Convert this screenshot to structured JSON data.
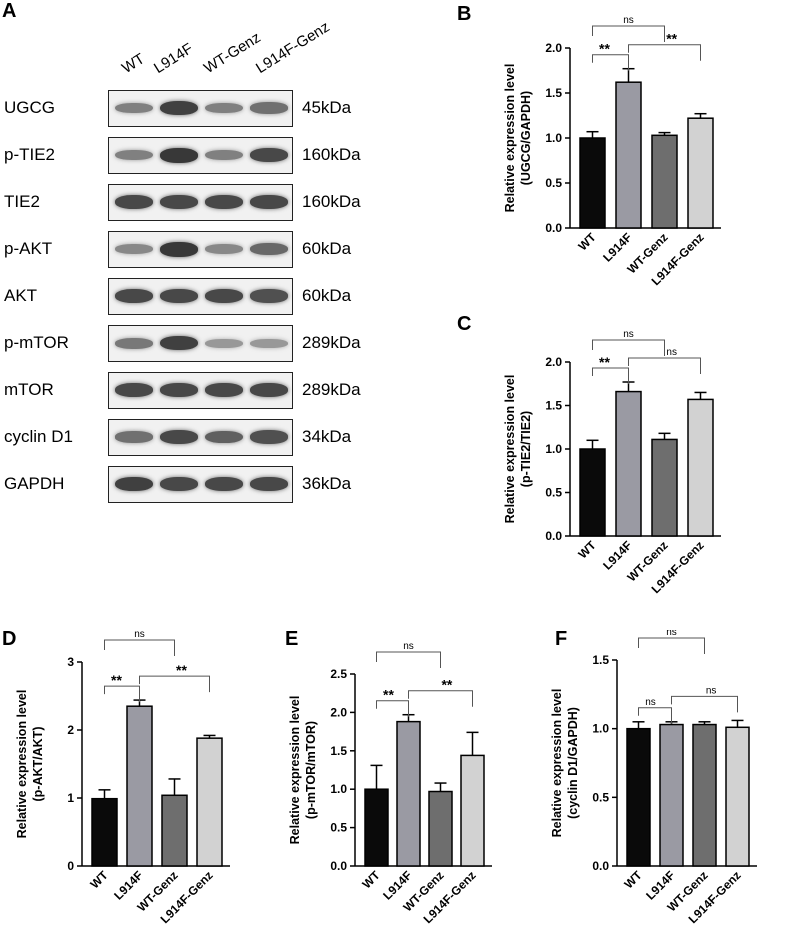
{
  "panel_labels": {
    "A": "A",
    "B": "B",
    "C": "C",
    "D": "D",
    "E": "E",
    "F": "F"
  },
  "blot": {
    "lanes": [
      "WT",
      "L914F",
      "WT-Genz",
      "L914F-Genz"
    ],
    "rows": [
      {
        "protein": "UGCG",
        "size": "45kDa",
        "intensity": [
          0.45,
          0.85,
          0.45,
          0.55
        ]
      },
      {
        "protein": "p-TIE2",
        "size": "160kDa",
        "intensity": [
          0.45,
          0.9,
          0.45,
          0.8
        ]
      },
      {
        "protein": "TIE2",
        "size": "160kDa",
        "intensity": [
          0.8,
          0.8,
          0.8,
          0.8
        ]
      },
      {
        "protein": "p-AKT",
        "size": "60kDa",
        "intensity": [
          0.4,
          0.9,
          0.4,
          0.6
        ]
      },
      {
        "protein": "AKT",
        "size": "60kDa",
        "intensity": [
          0.8,
          0.8,
          0.8,
          0.75
        ]
      },
      {
        "protein": "p-mTOR",
        "size": "289kDa",
        "intensity": [
          0.5,
          0.85,
          0.3,
          0.3
        ]
      },
      {
        "protein": "mTOR",
        "size": "289kDa",
        "intensity": [
          0.8,
          0.8,
          0.8,
          0.8
        ]
      },
      {
        "protein": "cyclin D1",
        "size": "34kDa",
        "intensity": [
          0.55,
          0.8,
          0.65,
          0.75
        ]
      },
      {
        "protein": "GAPDH",
        "size": "36kDa",
        "intensity": [
          0.85,
          0.8,
          0.8,
          0.8
        ]
      }
    ]
  },
  "bar_colors": [
    "#0a0a0a",
    "#9a9aa3",
    "#6e6e6e",
    "#d2d2d2"
  ],
  "chart_data": [
    {
      "id": "B",
      "type": "bar",
      "categories": [
        "WT",
        "L914F",
        "WT-Genz",
        "L914F-Genz"
      ],
      "values": [
        1.0,
        1.62,
        1.03,
        1.22
      ],
      "errors": [
        0.07,
        0.15,
        0.03,
        0.05
      ],
      "ylabel_line1": "Relative expression level",
      "ylabel_line2": "(UGCG/GAPDH)",
      "ylim": [
        0,
        2.0
      ],
      "yticks": [
        "0.0",
        "0.5",
        "1.0",
        "1.5",
        "2.0"
      ],
      "brackets": [
        {
          "from": 0,
          "to": 2,
          "label": "ns"
        },
        {
          "from": 0,
          "to": 1,
          "label": "**"
        },
        {
          "from": 1,
          "to": 3,
          "label": "**"
        }
      ]
    },
    {
      "id": "C",
      "type": "bar",
      "categories": [
        "WT",
        "L914F",
        "WT-Genz",
        "L914F-Genz"
      ],
      "values": [
        1.0,
        1.66,
        1.11,
        1.57
      ],
      "errors": [
        0.1,
        0.11,
        0.07,
        0.08
      ],
      "ylabel_line1": "Relative expression level",
      "ylabel_line2": "(p-TIE2/TIE2)",
      "ylim": [
        0,
        2.0
      ],
      "yticks": [
        "0.0",
        "0.5",
        "1.0",
        "1.5",
        "2.0"
      ],
      "brackets": [
        {
          "from": 0,
          "to": 2,
          "label": "ns"
        },
        {
          "from": 0,
          "to": 1,
          "label": "**"
        },
        {
          "from": 1,
          "to": 3,
          "label": "ns"
        }
      ]
    },
    {
      "id": "D",
      "type": "bar",
      "categories": [
        "WT",
        "L914F",
        "WT-Genz",
        "L914F-Genz"
      ],
      "values": [
        0.99,
        2.35,
        1.04,
        1.88
      ],
      "errors": [
        0.13,
        0.09,
        0.24,
        0.04
      ],
      "ylabel_line1": "Relative expression level",
      "ylabel_line2": "(p-AKT/AKT)",
      "ylim": [
        0,
        3
      ],
      "yticks": [
        "0",
        "1",
        "2",
        "3"
      ],
      "brackets": [
        {
          "from": 0,
          "to": 2,
          "label": "ns"
        },
        {
          "from": 0,
          "to": 1,
          "label": "**"
        },
        {
          "from": 1,
          "to": 3,
          "label": "**"
        }
      ]
    },
    {
      "id": "E",
      "type": "bar",
      "categories": [
        "WT",
        "L914F",
        "WT-Genz",
        "L914F-Genz"
      ],
      "values": [
        1.0,
        1.88,
        0.97,
        1.44
      ],
      "errors": [
        0.31,
        0.09,
        0.11,
        0.3
      ],
      "ylabel_line1": "Relative expression level",
      "ylabel_line2": "(p-mTOR/mTOR)",
      "ylim": [
        0,
        2.5
      ],
      "yticks": [
        "0.0",
        "0.5",
        "1.0",
        "1.5",
        "2.0",
        "2.5"
      ],
      "brackets": [
        {
          "from": 0,
          "to": 2,
          "label": "ns"
        },
        {
          "from": 0,
          "to": 1,
          "label": "**"
        },
        {
          "from": 1,
          "to": 3,
          "label": "**"
        }
      ]
    },
    {
      "id": "F",
      "type": "bar",
      "categories": [
        "WT",
        "L914F",
        "WT-Genz",
        "L914F-Genz"
      ],
      "values": [
        1.0,
        1.03,
        1.03,
        1.01
      ],
      "errors": [
        0.05,
        0.02,
        0.02,
        0.05
      ],
      "ylabel_line1": "Relative expression level",
      "ylabel_line2": "(cyclin D1/GAPDH)",
      "ylim": [
        0,
        1.5
      ],
      "yticks": [
        "0.0",
        "0.5",
        "1.0",
        "1.5"
      ],
      "brackets": [
        {
          "from": 0,
          "to": 2,
          "label": "ns"
        },
        {
          "from": 0,
          "to": 1,
          "label": "ns"
        },
        {
          "from": 1,
          "to": 3,
          "label": "ns"
        }
      ]
    }
  ]
}
